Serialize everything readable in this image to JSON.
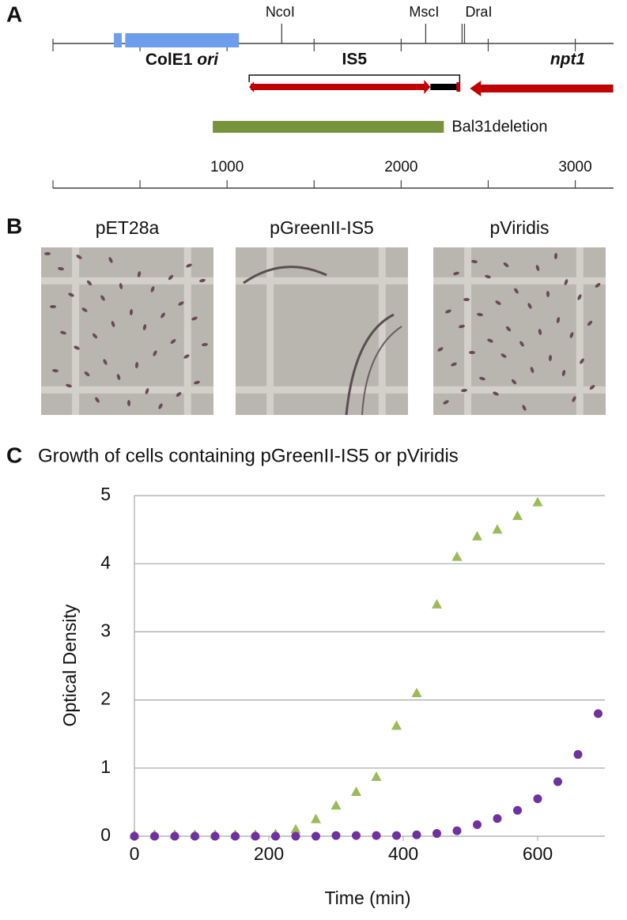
{
  "panel_a": {
    "letter": "A",
    "sites": [
      {
        "label": "NcoI",
        "pos": 1314
      },
      {
        "label": "MscI",
        "pos": 2141
      },
      {
        "label": "DraI",
        "pos": 2350
      }
    ],
    "draI_second_pos": 2364,
    "ori": {
      "label": "ColE1",
      "label_italic": "ori",
      "pieces": [
        [
          350,
          395
        ],
        [
          415,
          1068
        ]
      ],
      "color": "#6d9eeb"
    },
    "is5": {
      "label": "IS5",
      "bracket": [
        1127,
        2336
      ],
      "arrow": [
        1136,
        2168
      ],
      "black": [
        2168,
        2318
      ],
      "end": [
        2318,
        2340
      ],
      "color": "#c00000"
    },
    "npt1": {
      "label": "npt1",
      "arrow": [
        2395,
        3218
      ],
      "color": "#c00000"
    },
    "deletion": {
      "label": "Bal31deletion",
      "range": [
        918,
        2245
      ],
      "color": "#77933c"
    },
    "xlim": [
      0,
      3220
    ],
    "map_ticks": [
      0,
      500,
      1000,
      1500,
      2000,
      2500,
      3000
    ],
    "map_tick_labels": [
      1000,
      2000,
      3000
    ]
  },
  "panel_b": {
    "letter": "B",
    "images": [
      "pET28a",
      "pGreenII-IS5",
      "pViridis"
    ]
  },
  "panel_c": {
    "letter": "C"
  },
  "chart_data": {
    "type": "scatter",
    "title": "Growth of cells containing pGreenII-IS5 or pViridis",
    "x_label": "Time (min)",
    "y_label": "Optical Density",
    "xlim": [
      0,
      700
    ],
    "ylim": [
      0,
      5
    ],
    "xticks": [
      0,
      200,
      400,
      600
    ],
    "yticks": [
      0,
      1,
      2,
      3,
      4,
      5
    ],
    "grid": true,
    "series": [
      {
        "marker": "triangle",
        "color": "#9bbb59",
        "x": [
          0,
          30,
          60,
          90,
          120,
          150,
          180,
          210,
          240,
          270,
          300,
          330,
          360,
          390,
          420,
          450,
          480,
          510,
          540,
          570,
          600
        ],
        "values": [
          0.02,
          0.02,
          0.02,
          0.02,
          0.02,
          0.02,
          0.02,
          0.03,
          0.1,
          0.25,
          0.45,
          0.65,
          0.87,
          1.62,
          2.1,
          3.4,
          4.1,
          4.4,
          4.5,
          4.7,
          4.9
        ]
      },
      {
        "marker": "circle",
        "color": "#7030a0",
        "x": [
          0,
          30,
          60,
          90,
          120,
          150,
          180,
          210,
          240,
          270,
          300,
          330,
          360,
          390,
          420,
          450,
          480,
          510,
          540,
          570,
          600,
          630,
          660,
          690
        ],
        "values": [
          0,
          0,
          0,
          0,
          0,
          0,
          0,
          0,
          0,
          0,
          0.01,
          0.01,
          0.01,
          0.01,
          0.02,
          0.04,
          0.08,
          0.17,
          0.26,
          0.38,
          0.55,
          0.8,
          1.2,
          1.8
        ]
      }
    ]
  }
}
